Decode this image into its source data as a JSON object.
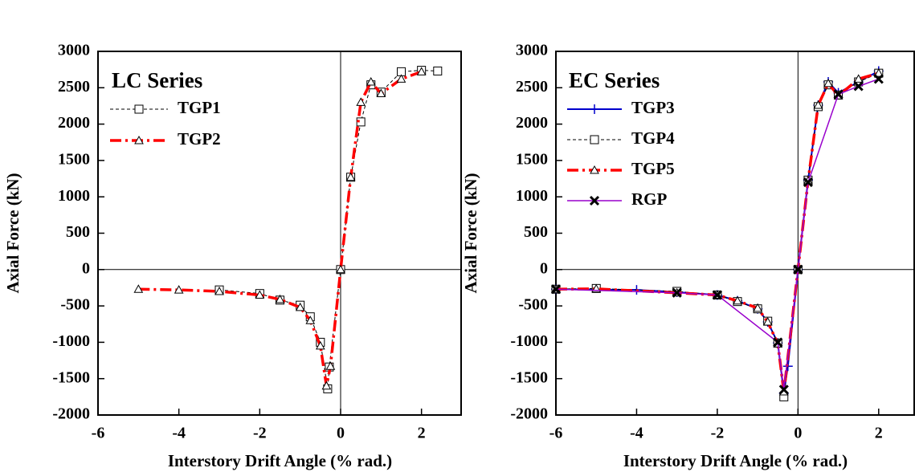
{
  "chart_data": [
    {
      "type": "line",
      "legend_title": "LC Series",
      "x_label": "Interstory Drift Angle (% rad.)",
      "y_label": "Axial Force (kN)",
      "xlim": [
        -6,
        3
      ],
      "ylim": [
        -2000,
        3000
      ],
      "xticks": [
        -6,
        -4,
        -2,
        0,
        2
      ],
      "yticks": [
        -2000,
        -1500,
        -1000,
        -500,
        0,
        500,
        1000,
        1500,
        2000,
        2500,
        3000
      ],
      "series": [
        {
          "name": "TGP1",
          "color": "#000000",
          "marker": "square",
          "dash": "4,3",
          "width": 1,
          "x": [
            -3,
            -2,
            -1.5,
            -1,
            -0.75,
            -0.5,
            -0.32,
            -0.28,
            0,
            0.25,
            0.5,
            0.75,
            1,
            1.5,
            2,
            2.4
          ],
          "values": [
            -280,
            -330,
            -420,
            -490,
            -650,
            -1000,
            -1640,
            -1340,
            0,
            1270,
            2030,
            2540,
            2440,
            2720,
            2740,
            2730
          ]
        },
        {
          "name": "TGP2",
          "color": "#ff0000",
          "marker": "triangle",
          "dash": "14,5,3,5",
          "width": 3.5,
          "x": [
            -5,
            -4,
            -3,
            -2,
            -1.5,
            -1,
            -0.75,
            -0.5,
            -0.35,
            -0.25,
            0,
            0.25,
            0.5,
            0.75,
            1,
            1.5,
            2
          ],
          "values": [
            -270,
            -280,
            -300,
            -350,
            -410,
            -520,
            -700,
            -1050,
            -1600,
            -1330,
            0,
            1270,
            2300,
            2580,
            2420,
            2620,
            2720
          ]
        }
      ]
    },
    {
      "type": "line",
      "legend_title": "EC Series",
      "x_label": "Interstory Drift Angle (% rad.)",
      "y_label": "Axial Force (kN)",
      "xlim": [
        -6,
        2.9
      ],
      "ylim": [
        -2000,
        3000
      ],
      "xticks": [
        -6,
        -4,
        -2,
        0,
        2
      ],
      "yticks": [
        -2000,
        -1500,
        -1000,
        -500,
        0,
        500,
        1000,
        1500,
        2000,
        2500,
        3000
      ],
      "series": [
        {
          "name": "TGP3",
          "color": "#0000cc",
          "marker": "plus",
          "dash": "",
          "width": 2,
          "x": [
            -6,
            -4,
            -3,
            -2,
            -1.5,
            -1,
            -0.75,
            -0.5,
            -0.35,
            -0.25,
            0,
            0.25,
            0.5,
            0.75,
            1,
            1.5,
            2
          ],
          "values": [
            -270,
            -280,
            -310,
            -350,
            -430,
            -540,
            -720,
            -1010,
            -1700,
            -1330,
            0,
            1230,
            2260,
            2580,
            2430,
            2580,
            2730
          ]
        },
        {
          "name": "TGP4",
          "color": "#000000",
          "marker": "square",
          "dash": "4,3",
          "width": 1,
          "x": [
            -6,
            -5,
            -3,
            -2,
            -1.5,
            -1,
            -0.75,
            -0.5,
            -0.35,
            0,
            0.25,
            0.5,
            0.75,
            1,
            1.5,
            2
          ],
          "values": [
            -270,
            -260,
            -300,
            -350,
            -440,
            -540,
            -710,
            -1010,
            -1750,
            0,
            1230,
            2240,
            2540,
            2400,
            2580,
            2700
          ]
        },
        {
          "name": "TGP5",
          "color": "#ff0000",
          "marker": "triangle",
          "dash": "14,5,3,5",
          "width": 3.5,
          "x": [
            -6,
            -5,
            -3,
            -2,
            -1.5,
            -1,
            -0.75,
            -0.5,
            -0.35,
            0,
            0.25,
            0.5,
            0.75,
            1,
            1.5,
            2
          ],
          "values": [
            -270,
            -265,
            -320,
            -350,
            -430,
            -530,
            -720,
            -1020,
            -1680,
            0,
            1220,
            2260,
            2560,
            2390,
            2620,
            2700
          ]
        },
        {
          "name": "RGP",
          "color": "#9900cc",
          "marker": "x",
          "dash": "",
          "width": 1.5,
          "x": [
            -6,
            -3,
            -2,
            -0.5,
            -0.35,
            0,
            0.25,
            1,
            1.5,
            2
          ],
          "values": [
            -270,
            -320,
            -350,
            -1000,
            -1650,
            0,
            1200,
            2410,
            2520,
            2620
          ]
        }
      ]
    }
  ]
}
